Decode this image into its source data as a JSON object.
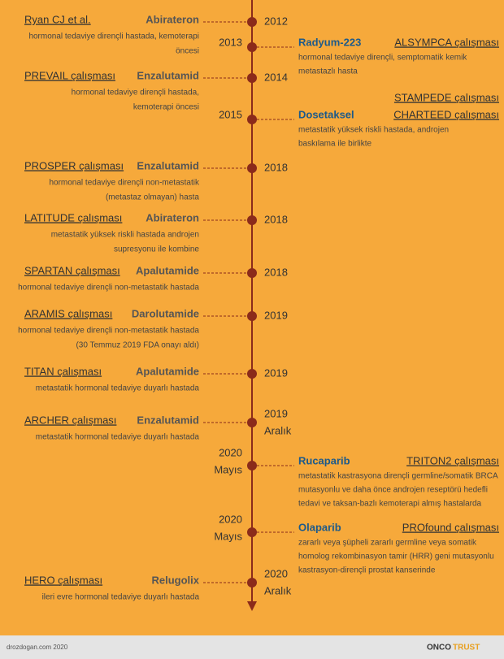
{
  "events": [
    {
      "side": "left",
      "study": [
        "Ryan CJ et al."
      ],
      "drug": "Abirateron",
      "description": [
        "hormonal tedaviye dirençli hastada, kemoterapi",
        "öncesi"
      ],
      "date": [
        "2012"
      ]
    },
    {
      "side": "right",
      "study": [
        "ALSYMPCA çalışması"
      ],
      "drug": "Radyum-223",
      "description": [
        "hormonal tedaviye dirençli, semptomatik kemik",
        "metastazlı hasta"
      ],
      "date": [
        "2013"
      ]
    },
    {
      "side": "left",
      "study": [
        "PREVAIL çalışması"
      ],
      "drug": "Enzalutamid",
      "description": [
        "hormonal tedaviye dirençli hastada,",
        "kemoterapi öncesi"
      ],
      "date": [
        "2014"
      ]
    },
    {
      "side": "right",
      "study": [
        "STAMPEDE çalışması",
        "CHARTEED çalışması"
      ],
      "drug": "Dosetaksel",
      "description": [
        "metastatik yüksek riskli hastada, androjen",
        "baskılama ile birlikte"
      ],
      "date": [
        "2015"
      ]
    },
    {
      "side": "left",
      "study": [
        "PROSPER çalışması"
      ],
      "drug": "Enzalutamid",
      "description": [
        "hormonal tedaviye dirençli non-metastatik",
        "(metastaz olmayan) hasta"
      ],
      "date": [
        "2018"
      ]
    },
    {
      "side": "left",
      "study": [
        "LATITUDE çalışması"
      ],
      "drug": "Abirateron",
      "description": [
        "metastatik yüksek riskli hastada androjen",
        "supresyonu ile kombine"
      ],
      "date": [
        "2018"
      ]
    },
    {
      "side": "left",
      "study": [
        "SPARTAN çalışması"
      ],
      "drug": "Apalutamide",
      "description": [
        "hormonal tedaviye dirençli non-metastatik hastada"
      ],
      "date": [
        "2018"
      ]
    },
    {
      "side": "left",
      "study": [
        "ARAMIS çalışması"
      ],
      "drug": "Darolutamide",
      "description": [
        "hormonal tedaviye dirençli non-metastatik hastada",
        "(30 Temmuz 2019 FDA onayı aldı)"
      ],
      "date": [
        "2019"
      ]
    },
    {
      "side": "left",
      "study": [
        "TITAN çalışması"
      ],
      "drug": "Apalutamide",
      "description": [
        "metastatik hormonal tedaviye duyarlı hastada"
      ],
      "date": [
        "2019"
      ]
    },
    {
      "side": "left",
      "study": [
        "ARCHER çalışması"
      ],
      "drug": "Enzalutamid",
      "description": [
        "metastatik hormonal tedaviye duyarlı hastada"
      ],
      "date": [
        "2019",
        "Aralık"
      ]
    },
    {
      "side": "right",
      "study": [
        "TRITON2 çalışması"
      ],
      "drug": "Rucaparib",
      "description": [
        "metastatik kastrasyona dirençli germline/somatik BRCA",
        "mutasyonlu ve daha önce androjen reseptörü hedefli",
        "tedavi ve taksan-bazlı kemoterapi almış hastalarda"
      ],
      "date": [
        "2020",
        "Mayıs"
      ]
    },
    {
      "side": "right",
      "study": [
        "PROfound çalışması"
      ],
      "drug": "Olaparib",
      "description": [
        "zararlı veya şüpheli zararlı germline veya somatik",
        "homolog rekombinasyon tamir (HRR) geni mutasyonlu",
        "kastrasyon-dirençli prostat kanserinde"
      ],
      "date": [
        "2020",
        "Mayıs"
      ]
    },
    {
      "side": "left",
      "study": [
        "HERO çalışması"
      ],
      "drug": "Relugolix",
      "description": [
        "ileri evre hormonal tedaviye duyarlı hastada"
      ],
      "date": [
        "2020",
        "Aralık"
      ]
    }
  ],
  "footer": {
    "credit": "drozdogan.com 2020",
    "logo": [
      "ONCO",
      "TRUST"
    ]
  }
}
